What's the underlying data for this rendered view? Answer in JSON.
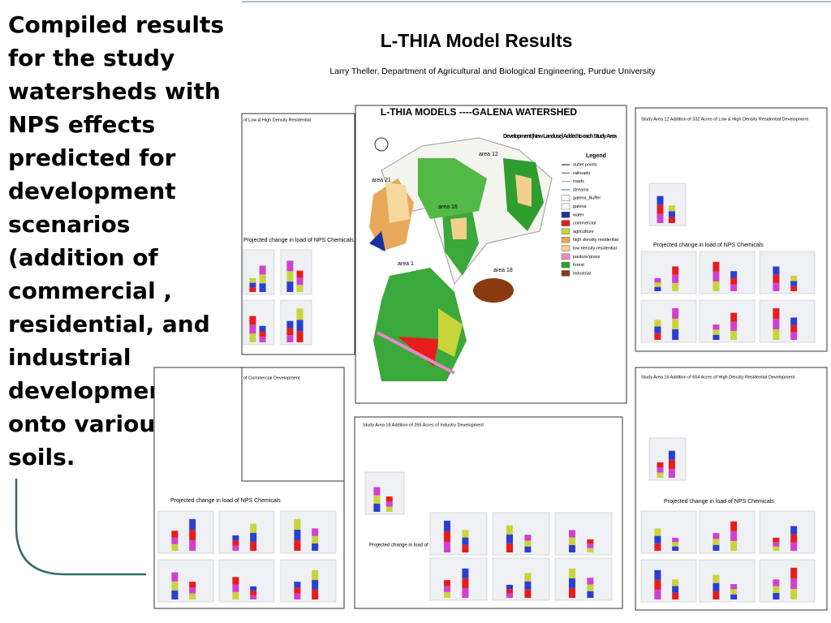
{
  "slide": {
    "text": "Compiled results for the study watersheds with NPS effects predicted for development scenarios (addition of commercial , residential, and industrial developments onto various soils.",
    "poster": {
      "title": "L-THIA Model Results",
      "subtitle": "Larry Theller, Department of Agricultural and Biological Engineering, Purdue University",
      "map": {
        "title": "L-THIA MODELS ----GALENA WATERSHED",
        "caption": "Development (New Landuse) Added to each Study Area",
        "area_labels": [
          "area 12",
          "area 21",
          "area 16",
          "area 1",
          "area 18"
        ],
        "legend": {
          "title": "Legend",
          "items": [
            "outlet points",
            "railroads",
            "roads",
            "streams",
            "galena_Buffer",
            "galena",
            "water",
            "commercial",
            "agriculture",
            "high density residential",
            "low density residential",
            "pasture/grass",
            "forest",
            "industrial"
          ]
        }
      },
      "panels": [
        {
          "heading": "Study Area 12 Addition of 332 Acres of Low & High Density Residential Development",
          "chart_caption": "Projected change in load of NPS Chemicals"
        },
        {
          "heading": "Study Area 16 Addition of 654 Acres of High Density Residential Development",
          "chart_caption": "Projected change in load of NPS Chemicals"
        },
        {
          "heading": "Study Area 18 Addition of 255 Acres of Industry Development",
          "chart_caption": "Projected change in load of NPS Chemicals"
        },
        {
          "heading": "of Commercial Development",
          "chart_caption": "Projected change in load of NPS Chemicals"
        },
        {
          "heading": "of Low & High Density Residential",
          "chart_caption": "Projected change in load of NPS Chemicals"
        }
      ]
    }
  }
}
